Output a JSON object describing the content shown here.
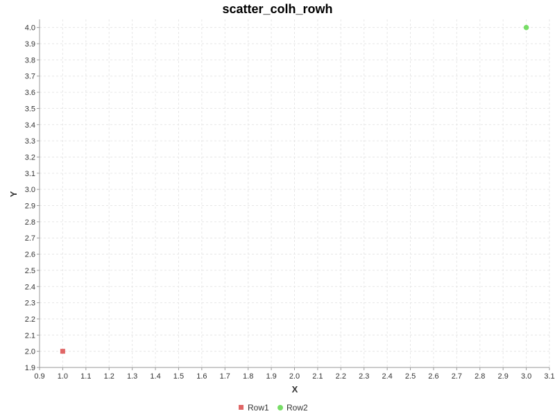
{
  "chart_data": {
    "type": "scatter",
    "title": "scatter_colh_rowh",
    "xlabel": "X",
    "ylabel": "Y",
    "xlim": [
      0.9,
      3.1
    ],
    "ylim": [
      1.9,
      4.05
    ],
    "x_ticks": [
      "0.9",
      "1.0",
      "1.1",
      "1.2",
      "1.3",
      "1.4",
      "1.5",
      "1.6",
      "1.7",
      "1.8",
      "1.9",
      "2.0",
      "2.1",
      "2.2",
      "2.3",
      "2.4",
      "2.5",
      "2.6",
      "2.7",
      "2.8",
      "2.9",
      "3.0",
      "3.1"
    ],
    "y_ticks": [
      "1.9",
      "2.0",
      "2.1",
      "2.2",
      "2.3",
      "2.4",
      "2.5",
      "2.6",
      "2.7",
      "2.8",
      "2.9",
      "3.0",
      "3.1",
      "3.2",
      "3.3",
      "3.4",
      "3.5",
      "3.6",
      "3.7",
      "3.8",
      "3.9",
      "4.0"
    ],
    "grid": true,
    "legend_position": "bottom",
    "series": [
      {
        "name": "Row1",
        "color": "#e06666",
        "marker": "square",
        "points": [
          {
            "x": 1.0,
            "y": 2.0
          }
        ]
      },
      {
        "name": "Row2",
        "color": "#77dd66",
        "marker": "circle",
        "points": [
          {
            "x": 3.0,
            "y": 4.0
          }
        ]
      }
    ]
  }
}
